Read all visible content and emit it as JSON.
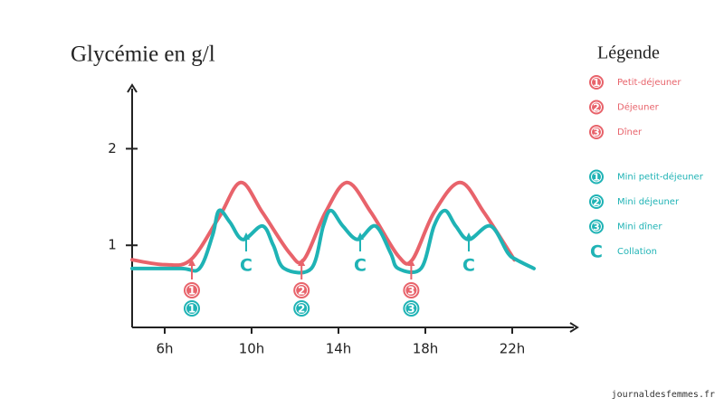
{
  "chart_data": {
    "type": "line",
    "title": "Glycémie en g/l",
    "xlim": [
      4.5,
      25
    ],
    "ylim": [
      0.15,
      2.65
    ],
    "xticks": [
      {
        "value": 6,
        "label": "6h"
      },
      {
        "value": 10,
        "label": "10h"
      },
      {
        "value": 14,
        "label": "14h"
      },
      {
        "value": 18,
        "label": "18h"
      },
      {
        "value": 22,
        "label": "22h"
      }
    ],
    "yticks": [
      1,
      2
    ],
    "series": [
      {
        "color": "#e8636b",
        "x": [
          4.5,
          6,
          7.2,
          8.5,
          9.5,
          10.5,
          11.75,
          12.4,
          13.4,
          14.4,
          15.5,
          16.75,
          17.4,
          18.4,
          19.6,
          20.7,
          22.1
        ],
        "values": [
          0.85,
          0.8,
          0.85,
          1.29,
          1.65,
          1.34,
          0.92,
          0.85,
          1.34,
          1.65,
          1.34,
          0.89,
          0.85,
          1.34,
          1.65,
          1.34,
          0.85
        ]
      },
      {
        "color": "#1fb3b5",
        "x": [
          4.5,
          6.75,
          7.6,
          8.2,
          8.5,
          9,
          9.6,
          10.5,
          11,
          11.5,
          12.75,
          13.3,
          13.65,
          14.2,
          14.9,
          15.7,
          16.4,
          16.75,
          17.8,
          18.4,
          18.9,
          19.4,
          20,
          21,
          21.8,
          22.2,
          23
        ],
        "values": [
          0.76,
          0.76,
          0.76,
          1.1,
          1.36,
          1.24,
          1.06,
          1.2,
          1.0,
          0.76,
          0.76,
          1.2,
          1.36,
          1.2,
          1.06,
          1.2,
          0.92,
          0.76,
          0.76,
          1.2,
          1.36,
          1.2,
          1.06,
          1.2,
          0.92,
          0.85,
          0.76
        ]
      }
    ],
    "meals": [
      {
        "x": 7.25,
        "label": "1",
        "mini_label": "1"
      },
      {
        "x": 12.3,
        "label": "2",
        "mini_label": "2"
      },
      {
        "x": 17.35,
        "label": "3",
        "mini_label": "3"
      }
    ],
    "snacks": [
      {
        "x": 9.75,
        "label": "C"
      },
      {
        "x": 15.0,
        "label": "C"
      },
      {
        "x": 20.0,
        "label": "C"
      }
    ],
    "legend": {
      "title": "Légende",
      "groups": [
        {
          "color": "#e8636b",
          "items": [
            {
              "icon": "1",
              "label": "Petit-déjeuner"
            },
            {
              "icon": "2",
              "label": "Déjeuner"
            },
            {
              "icon": "3",
              "label": "Dîner"
            }
          ]
        },
        {
          "color": "#1fb3b5",
          "items": [
            {
              "icon": "1",
              "label": "Mini petit-déjeuner"
            },
            {
              "icon": "2",
              "label": "Mini déjeuner"
            },
            {
              "icon": "3",
              "label": "Mini dîner"
            },
            {
              "icon": "C",
              "label": "Collation",
              "plain": true
            }
          ]
        }
      ]
    },
    "source": "journaldesfemmes.fr"
  }
}
